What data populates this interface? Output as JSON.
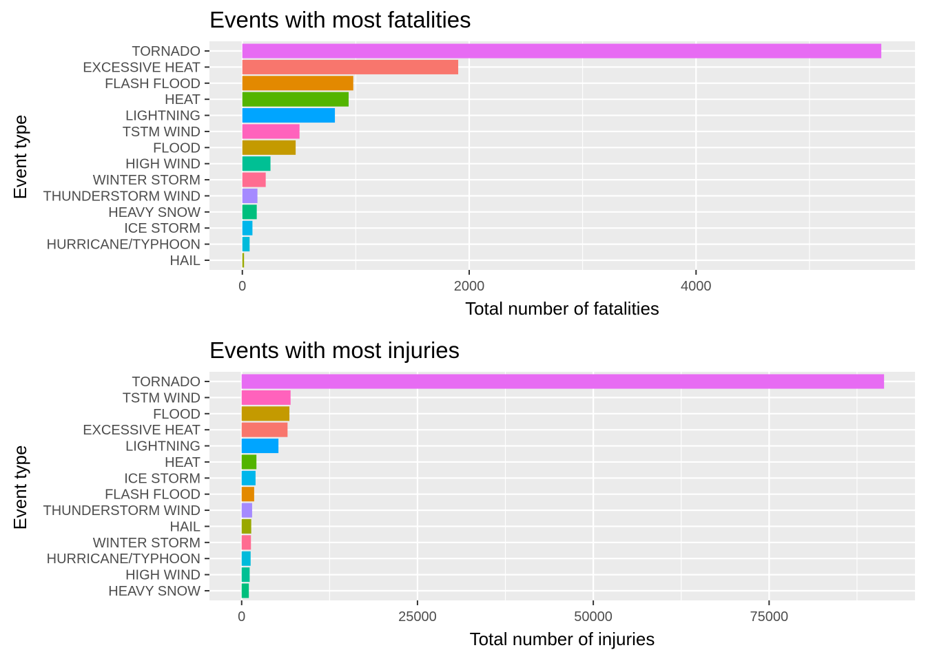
{
  "chart_data": [
    {
      "type": "bar",
      "orientation": "horizontal",
      "title": "Events with most fatalities",
      "xlabel": "Total number of fatalities",
      "ylabel": "Event type",
      "xlim": [
        -290,
        5930
      ],
      "xticks": [
        0,
        2000,
        4000
      ],
      "xtick_labels": [
        "0",
        "2000",
        "4000"
      ],
      "grid": true,
      "legend": "none",
      "categories": [
        "TORNADO",
        "EXCESSIVE HEAT",
        "FLASH FLOOD",
        "HEAT",
        "LIGHTNING",
        "TSTM WIND",
        "FLOOD",
        "HIGH WIND",
        "WINTER STORM",
        "THUNDERSTORM WIND",
        "HEAVY SNOW",
        "ICE STORM",
        "HURRICANE/TYPHOON",
        "HAIL"
      ],
      "values": [
        5633,
        1903,
        978,
        937,
        816,
        504,
        470,
        248,
        206,
        133,
        127,
        89,
        64,
        15
      ],
      "colors": [
        "#E76BF3",
        "#F8766D",
        "#E38900",
        "#53B400",
        "#00A5FF",
        "#FF62BC",
        "#C49A00",
        "#00C094",
        "#FF6C91",
        "#A58AFF",
        "#00BF7D",
        "#00B6EB",
        "#00BBDB",
        "#99A800"
      ]
    },
    {
      "type": "bar",
      "orientation": "horizontal",
      "title": "Events with most injuries",
      "xlabel": "Total number of injuries",
      "ylabel": "Event type",
      "xlim": [
        -4580,
        95740
      ],
      "xticks": [
        0,
        25000,
        50000,
        75000
      ],
      "xtick_labels": [
        "0",
        "25000",
        "50000",
        "75000"
      ],
      "grid": true,
      "legend": "none",
      "categories": [
        "TORNADO",
        "TSTM WIND",
        "FLOOD",
        "EXCESSIVE HEAT",
        "LIGHTNING",
        "HEAT",
        "ICE STORM",
        "FLASH FLOOD",
        "THUNDERSTORM WIND",
        "HAIL",
        "WINTER STORM",
        "HURRICANE/TYPHOON",
        "HIGH WIND",
        "HEAVY SNOW"
      ],
      "values": [
        91346,
        6957,
        6789,
        6525,
        5230,
        2100,
        1975,
        1777,
        1488,
        1361,
        1321,
        1275,
        1137,
        1021
      ],
      "colors": [
        "#E76BF3",
        "#FF62BC",
        "#C49A00",
        "#F8766D",
        "#00A5FF",
        "#53B400",
        "#00B6EB",
        "#E38900",
        "#A58AFF",
        "#99A800",
        "#FF6C91",
        "#00BBDB",
        "#00C094",
        "#00BF7D"
      ]
    }
  ],
  "style": {
    "panel_background": "#EBEBEB",
    "grid_color": "#FFFFFF",
    "text_color": "#4D4D4D",
    "tick_color": "#333333"
  }
}
